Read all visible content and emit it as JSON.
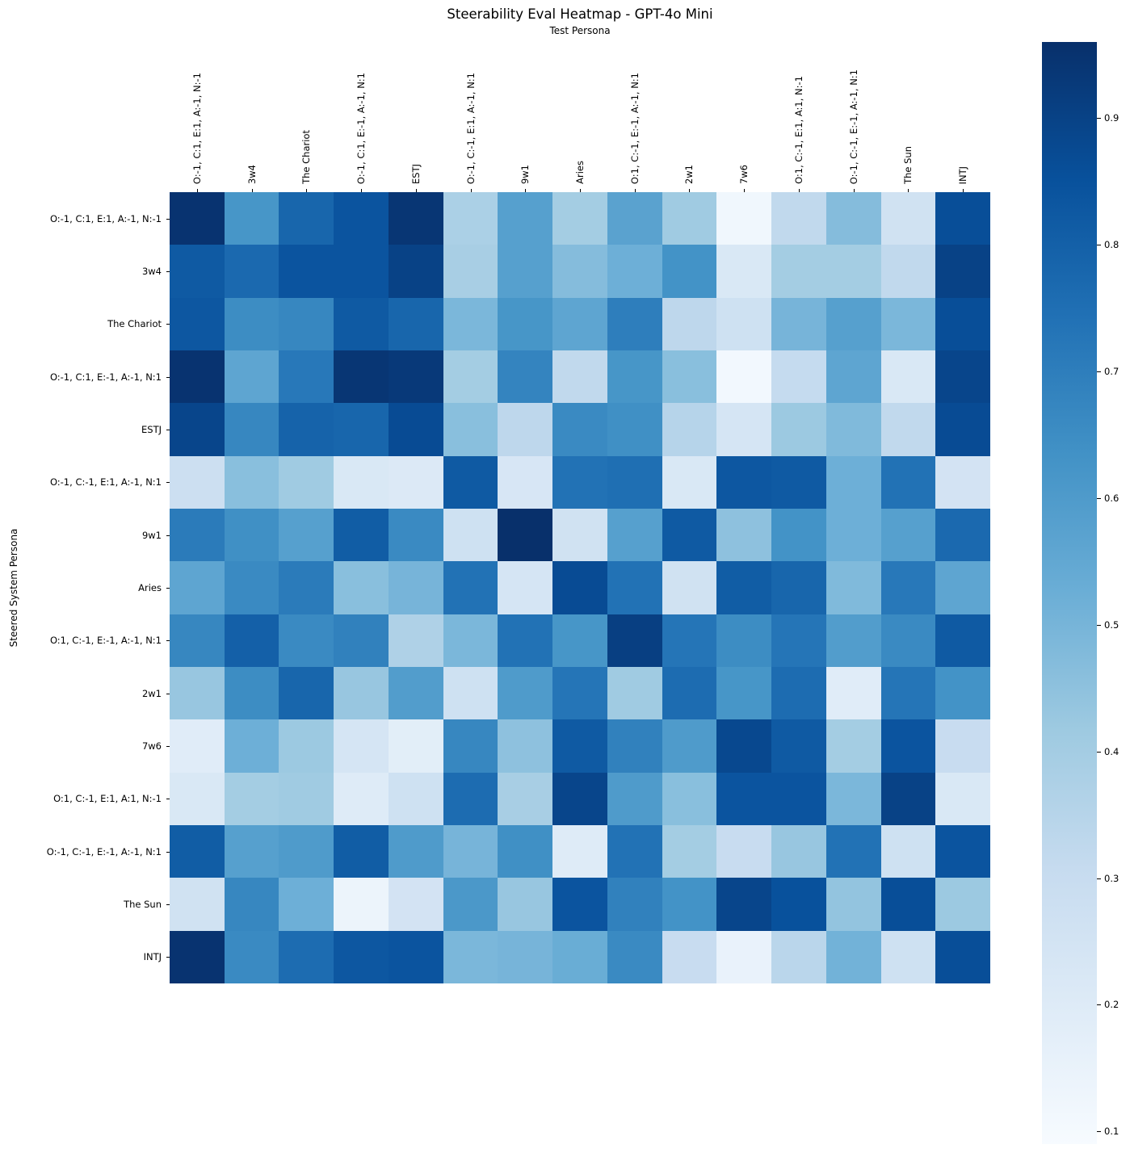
{
  "page": {
    "title": "Steerability Eval Heatmap - GPT-4o Mini"
  },
  "chart_data": {
    "type": "heatmap",
    "title": "Steerability Eval Heatmap - GPT-4o Mini",
    "xlabel": "Test Persona",
    "ylabel": "Steered System Persona",
    "colormap": "Blues",
    "vmin": 0.09,
    "vmax": 0.96,
    "legend_position": "right-colorbar",
    "grid": false,
    "colorbar_ticks": [
      0.9,
      0.8,
      0.7,
      0.6,
      0.5,
      0.4,
      0.3,
      0.2,
      0.1
    ],
    "colormap_stops": [
      [
        0.0,
        "#f7fbff"
      ],
      [
        0.125,
        "#deebf7"
      ],
      [
        0.25,
        "#c6dbef"
      ],
      [
        0.375,
        "#9ecae1"
      ],
      [
        0.5,
        "#6baed6"
      ],
      [
        0.625,
        "#4292c6"
      ],
      [
        0.75,
        "#2171b5"
      ],
      [
        0.875,
        "#08519c"
      ],
      [
        1.0,
        "#08306b"
      ]
    ],
    "x_labels": [
      "O:-1, C:1, E:1, A:-1, N:-1",
      "3w4",
      "The Chariot",
      "O:-1, C:1, E:-1, A:-1, N:1",
      "ESTJ",
      "O:-1, C:-1, E:1, A:-1, N:1",
      "9w1",
      "Aries",
      "O:1, C:-1, E:-1, A:-1, N:1",
      "2w1",
      "7w6",
      "O:1, C:-1, E:1, A:1, N:-1",
      "O:-1, C:-1, E:-1, A:-1, N:1",
      "The Sun",
      "INTJ"
    ],
    "y_labels": [
      "O:-1, C:1, E:1, A:-1, N:-1",
      "3w4",
      "The Chariot",
      "O:-1, C:1, E:-1, A:-1, N:1",
      "ESTJ",
      "O:-1, C:-1, E:1, A:-1, N:1",
      "9w1",
      "Aries",
      "O:1, C:-1, E:-1, A:-1, N:1",
      "2w1",
      "7w6",
      "O:1, C:-1, E:1, A:1, N:-1",
      "O:-1, C:-1, E:-1, A:-1, N:1",
      "The Sun",
      "INTJ"
    ],
    "values": [
      [
        0.95,
        0.62,
        0.78,
        0.84,
        0.94,
        0.38,
        0.58,
        0.4,
        0.57,
        0.41,
        0.12,
        0.32,
        0.47,
        0.26,
        0.86
      ],
      [
        0.82,
        0.77,
        0.84,
        0.84,
        0.9,
        0.39,
        0.58,
        0.47,
        0.52,
        0.63,
        0.22,
        0.4,
        0.4,
        0.32,
        0.9
      ],
      [
        0.83,
        0.65,
        0.67,
        0.82,
        0.78,
        0.49,
        0.62,
        0.56,
        0.7,
        0.33,
        0.27,
        0.5,
        0.58,
        0.49,
        0.86
      ],
      [
        0.95,
        0.56,
        0.72,
        0.94,
        0.93,
        0.4,
        0.68,
        0.32,
        0.62,
        0.46,
        0.11,
        0.31,
        0.56,
        0.22,
        0.89
      ],
      [
        0.89,
        0.67,
        0.79,
        0.78,
        0.87,
        0.46,
        0.33,
        0.66,
        0.64,
        0.35,
        0.24,
        0.42,
        0.48,
        0.32,
        0.87
      ],
      [
        0.28,
        0.46,
        0.41,
        0.22,
        0.21,
        0.82,
        0.23,
        0.74,
        0.75,
        0.22,
        0.83,
        0.82,
        0.52,
        0.74,
        0.25
      ],
      [
        0.71,
        0.64,
        0.58,
        0.81,
        0.66,
        0.27,
        0.96,
        0.26,
        0.58,
        0.82,
        0.45,
        0.63,
        0.52,
        0.58,
        0.77
      ],
      [
        0.56,
        0.66,
        0.71,
        0.46,
        0.5,
        0.74,
        0.24,
        0.87,
        0.74,
        0.26,
        0.81,
        0.78,
        0.48,
        0.72,
        0.56
      ],
      [
        0.67,
        0.8,
        0.66,
        0.69,
        0.37,
        0.49,
        0.74,
        0.62,
        0.91,
        0.73,
        0.65,
        0.73,
        0.59,
        0.66,
        0.82
      ],
      [
        0.43,
        0.65,
        0.78,
        0.43,
        0.59,
        0.27,
        0.6,
        0.73,
        0.41,
        0.76,
        0.62,
        0.76,
        0.19,
        0.73,
        0.63
      ],
      [
        0.19,
        0.52,
        0.42,
        0.24,
        0.18,
        0.67,
        0.45,
        0.82,
        0.69,
        0.6,
        0.88,
        0.82,
        0.4,
        0.84,
        0.3
      ],
      [
        0.22,
        0.4,
        0.41,
        0.2,
        0.27,
        0.76,
        0.39,
        0.89,
        0.6,
        0.46,
        0.84,
        0.84,
        0.49,
        0.9,
        0.22
      ],
      [
        0.81,
        0.58,
        0.6,
        0.81,
        0.6,
        0.5,
        0.64,
        0.2,
        0.74,
        0.4,
        0.3,
        0.43,
        0.74,
        0.27,
        0.84
      ],
      [
        0.26,
        0.67,
        0.52,
        0.14,
        0.25,
        0.61,
        0.43,
        0.84,
        0.69,
        0.63,
        0.89,
        0.85,
        0.44,
        0.86,
        0.42
      ],
      [
        0.95,
        0.66,
        0.76,
        0.83,
        0.84,
        0.49,
        0.5,
        0.53,
        0.66,
        0.3,
        0.15,
        0.34,
        0.51,
        0.27,
        0.86
      ]
    ]
  }
}
